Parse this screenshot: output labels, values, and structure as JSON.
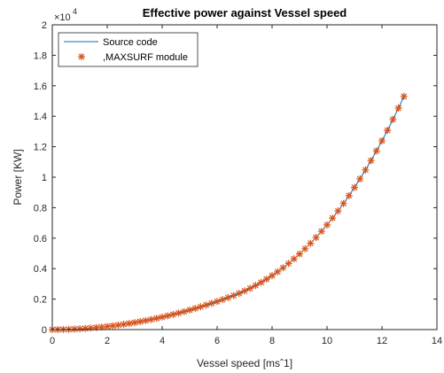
{
  "chart_data": {
    "type": "line",
    "title": "Effective power against Vessel speed",
    "xlabel": "Vessel speed [msˆ1]",
    "ylabel": "Power [KW]",
    "exponent_base": "×10",
    "exponent_power": "4",
    "xlim": [
      0,
      14
    ],
    "ylim": [
      0,
      2
    ],
    "y_multiplier": 10000,
    "xticks": [
      0,
      2,
      4,
      6,
      8,
      10,
      12,
      14
    ],
    "xtick_labels": [
      "0",
      "2",
      "4",
      "6",
      "8",
      "10",
      "12",
      "14"
    ],
    "yticks": [
      0,
      0.2,
      0.4,
      0.6,
      0.8,
      1,
      1.2,
      1.4,
      1.6,
      1.8,
      2
    ],
    "ytick_labels": [
      "0",
      "0.2",
      "0.4",
      "0.6",
      "0.8",
      "1",
      "1.2",
      "1.4",
      "1.6",
      "1.8",
      "2"
    ],
    "grid": false,
    "legend_position": "top-left",
    "x": [
      0,
      0.2,
      0.4,
      0.6,
      0.8,
      1,
      1.2,
      1.4,
      1.6,
      1.8,
      2,
      2.2,
      2.4,
      2.6,
      2.8,
      3,
      3.2,
      3.4,
      3.6,
      3.8,
      4,
      4.2,
      4.4,
      4.6,
      4.8,
      5,
      5.2,
      5.4,
      5.6,
      5.8,
      6,
      6.2,
      6.4,
      6.6,
      6.8,
      7,
      7.2,
      7.4,
      7.6,
      7.8,
      8,
      8.2,
      8.4,
      8.6,
      8.8,
      9,
      9.2,
      9.4,
      9.6,
      9.8,
      10,
      10.2,
      10.4,
      10.6,
      10.8,
      11,
      11.2,
      11.4,
      11.6,
      11.8,
      12,
      12.2,
      12.4,
      12.6,
      12.8
    ],
    "series": [
      {
        "name": "Source code",
        "style": "line",
        "color": "#0072BD",
        "values": [
          0,
          0.0002,
          0.0008,
          0.0018,
          0.0033,
          0.0051,
          0.0074,
          0.0101,
          0.0132,
          0.0167,
          0.0205,
          0.0248,
          0.0295,
          0.0346,
          0.0402,
          0.0461,
          0.0525,
          0.0592,
          0.0664,
          0.074,
          0.082,
          0.0904,
          0.0992,
          0.1085,
          0.1181,
          0.1281,
          0.1386,
          0.1495,
          0.1607,
          0.1724,
          0.1845,
          0.197,
          0.2099,
          0.2233,
          0.2378,
          0.2536,
          0.2707,
          0.2893,
          0.3093,
          0.3309,
          0.3541,
          0.379,
          0.4056,
          0.4339,
          0.4642,
          0.4963,
          0.5303,
          0.5663,
          0.6044,
          0.6446,
          0.687,
          0.7316,
          0.7784,
          0.8274,
          0.8788,
          0.9326,
          0.9888,
          1.0475,
          1.1086,
          1.1723,
          1.2386,
          1.3075,
          1.3791,
          1.4533,
          1.5303
        ]
      },
      {
        "name": ",MAXSURF module",
        "style": "marker",
        "marker": "*",
        "color": "#D95319",
        "values": [
          0,
          0.0002,
          0.0008,
          0.0018,
          0.0033,
          0.0051,
          0.0074,
          0.0101,
          0.0132,
          0.0167,
          0.0205,
          0.0248,
          0.0295,
          0.0346,
          0.0402,
          0.0461,
          0.0525,
          0.0592,
          0.0664,
          0.074,
          0.082,
          0.0904,
          0.0992,
          0.1085,
          0.1181,
          0.1281,
          0.1386,
          0.1495,
          0.1607,
          0.1724,
          0.1845,
          0.197,
          0.2099,
          0.2233,
          0.2378,
          0.2536,
          0.2707,
          0.2893,
          0.3093,
          0.3309,
          0.3541,
          0.379,
          0.4056,
          0.4339,
          0.4642,
          0.4963,
          0.5303,
          0.5663,
          0.6044,
          0.6446,
          0.687,
          0.7316,
          0.7784,
          0.8274,
          0.8788,
          0.9326,
          0.9888,
          1.0475,
          1.1086,
          1.1723,
          1.2386,
          1.3075,
          1.3791,
          1.4533,
          1.5303
        ]
      }
    ]
  }
}
